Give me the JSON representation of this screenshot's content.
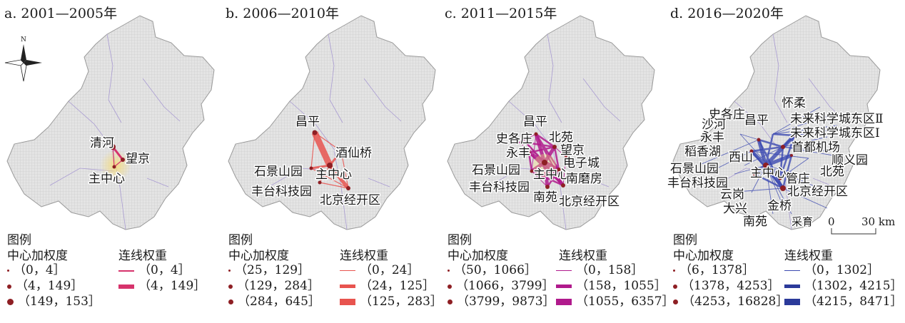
{
  "panels": [
    {
      "title": "a. 2001—2005年",
      "edge_color": "#d6336c",
      "nodes": [
        "清河",
        "望京",
        "主中心"
      ],
      "legend": {
        "title": "图例",
        "nodes_header": "中心加权度",
        "edges_header": "连线权重",
        "node_classes": [
          "（0，4］",
          "（4，149］",
          "（149，153］"
        ],
        "edge_classes": [
          "（0，4］",
          "（4，149］"
        ]
      }
    },
    {
      "title": "b. 2006—2010年",
      "edge_color": "#e8544f",
      "nodes": [
        "昌平",
        "酒仙桥",
        "石景山园",
        "主中心",
        "丰台科技园",
        "北京经开区"
      ],
      "legend": {
        "title": "图例",
        "nodes_header": "中心加权度",
        "edges_header": "连线权重",
        "node_classes": [
          "（25，129］",
          "（129，284］",
          "（284，645］"
        ],
        "edge_classes": [
          "（0，24］",
          "（24，125］",
          "（125，283］"
        ]
      }
    },
    {
      "title": "c. 2011—2015年",
      "edge_color": "#b01a8c",
      "nodes": [
        "昌平",
        "史各庄",
        "北苑",
        "永丰",
        "望京",
        "电子城",
        "石景山园",
        "主中心",
        "南磨房",
        "丰台科技园",
        "南苑",
        "北京经开区"
      ],
      "legend": {
        "title": "图例",
        "nodes_header": "中心加权度",
        "edges_header": "连线权重",
        "node_classes": [
          "（50，1066］",
          "（1066，3799］",
          "（3799，9873］"
        ],
        "edge_classes": [
          "（0，158］",
          "（158，1055］",
          "（1055，6357］"
        ]
      }
    },
    {
      "title": "d. 2016—2020年",
      "edge_color": "#3b49b0",
      "nodes": [
        "怀柔",
        "史各庄",
        "昌平",
        "未来科学城东区Ⅱ",
        "沙河",
        "未来科学城东区Ⅰ",
        "永丰",
        "首都机场",
        "稻香湖",
        "西山",
        "顺义园",
        "石景山园",
        "主中心",
        "北苑",
        "管庄",
        "丰台科技园",
        "北京经开区",
        "云岗",
        "大兴",
        "金桥",
        "南苑",
        "采育"
      ],
      "legend": {
        "title": "图例",
        "nodes_header": "中心加权度",
        "edges_header": "连线权重",
        "node_classes": [
          "（6，1378］",
          "（1378，4253］",
          "（4253，16828］"
        ],
        "edge_classes": [
          "（0，1302］",
          "（1302，4215］",
          "（4215，8471］"
        ]
      }
    }
  ],
  "north_arrow": "N",
  "scale_bar": {
    "zero": "0",
    "end": "30 km"
  },
  "colors": {
    "map_fill": "#e6e6e6",
    "hatch": "#c9c9c9",
    "border": "#9b8cc4",
    "node": "#8e1f24",
    "halo": "#f4e3a4"
  },
  "icons": [
    "north-arrow-icon",
    "scale-bar"
  ]
}
